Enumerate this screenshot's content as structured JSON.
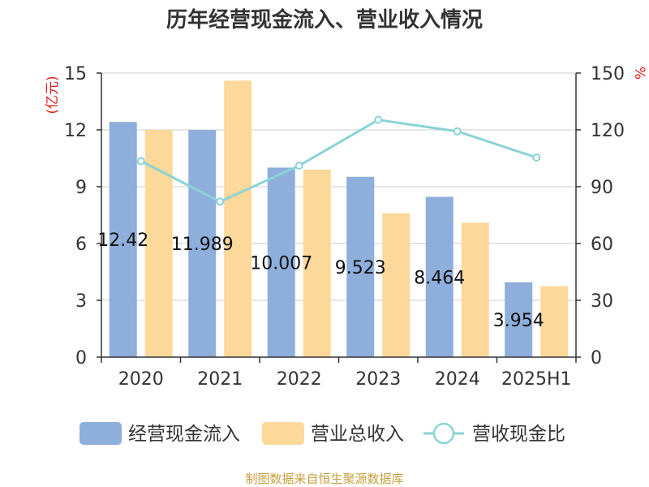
{
  "chart_data": {
    "type": "bar",
    "title": "历年经营现金流入、营业收入情况",
    "categories": [
      "2020",
      "2021",
      "2022",
      "2023",
      "2024",
      "2025H1"
    ],
    "left_axis": {
      "label": "(亿元)",
      "ylim": [
        0,
        15
      ],
      "ticks": [
        "0",
        "3",
        "6",
        "9",
        "12",
        "15"
      ]
    },
    "right_axis": {
      "label": "%",
      "ylim": [
        0,
        150
      ],
      "ticks": [
        "0",
        "30",
        "60",
        "90",
        "120",
        "150"
      ]
    },
    "series": [
      {
        "name": "经营现金流入",
        "type": "bar",
        "axis": "left",
        "color": "#8eaedb",
        "values": [
          12.42,
          11.989,
          10.007,
          9.523,
          8.464,
          3.954
        ],
        "data_labels": [
          "12.42",
          "11.989",
          "10.007",
          "9.523",
          "8.464",
          "3.954"
        ]
      },
      {
        "name": "营业总收入",
        "type": "bar",
        "axis": "left",
        "color": "#fdd89b",
        "values": [
          12.0,
          14.6,
          9.9,
          7.6,
          7.1,
          3.75
        ]
      },
      {
        "name": "营收现金比",
        "type": "line",
        "axis": "right",
        "color": "#8ad3d6",
        "values": [
          103.5,
          82.1,
          101.1,
          125.3,
          119.2,
          105.4
        ]
      }
    ],
    "grid": true,
    "legend_position": "bottom"
  },
  "source": "制图数据来自恒生聚源数据库"
}
